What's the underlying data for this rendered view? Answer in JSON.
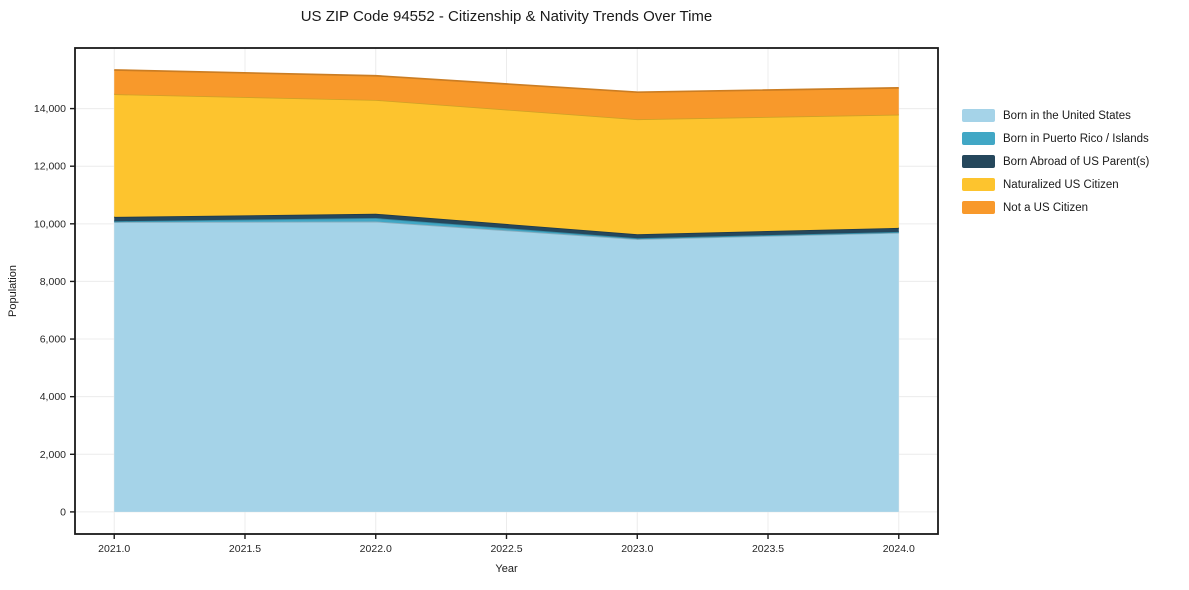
{
  "page_title": "US ZIP Code 94552 - Citizenship & Nativity Trends Over Time",
  "chart_data": {
    "type": "area",
    "stacked": true,
    "title": "US ZIP Code 94552 - Citizenship & Nativity Trends Over Time",
    "xlabel": "Year",
    "ylabel": "Population",
    "x": [
      2021,
      2022,
      2023,
      2024
    ],
    "series": [
      {
        "name": "Born in the United States",
        "color": "#a5d3e8",
        "values": [
          10060,
          10080,
          9470,
          9690
        ]
      },
      {
        "name": "Born in Puerto Rico / Islands",
        "color": "#41a7c5",
        "values": [
          30,
          120,
          30,
          30
        ]
      },
      {
        "name": "Born Abroad of US Parent(s)",
        "color": "#25475c",
        "values": [
          150,
          150,
          140,
          140
        ]
      },
      {
        "name": "Naturalized US Citizen",
        "color": "#fdc42e",
        "values": [
          4260,
          3950,
          3990,
          3930
        ]
      },
      {
        "name": "Not a US Citizen",
        "color": "#f8992b",
        "values": [
          840,
          840,
          940,
          930
        ]
      }
    ],
    "totals": [
      15340,
      15140,
      14570,
      14720
    ],
    "xlim": [
      2020.85,
      2024.15
    ],
    "ylim": [
      -767,
      16103
    ],
    "x_ticks": [
      2021.0,
      2021.5,
      2022.0,
      2022.5,
      2023.0,
      2023.5,
      2024.0
    ],
    "x_tick_labels": [
      "2021.0",
      "2021.5",
      "2022.0",
      "2022.5",
      "2023.0",
      "2023.5",
      "2024.0"
    ],
    "y_ticks": [
      0,
      2000,
      4000,
      6000,
      8000,
      10000,
      12000,
      14000
    ],
    "y_tick_labels": [
      "0",
      "2,000",
      "4,000",
      "6,000",
      "8,000",
      "10,000",
      "12,000",
      "14,000"
    ],
    "grid": true,
    "grid_color": "#ececec",
    "spine_color": "#1a1a1a",
    "tick_label_color": "#262626",
    "legend_position": "right"
  }
}
